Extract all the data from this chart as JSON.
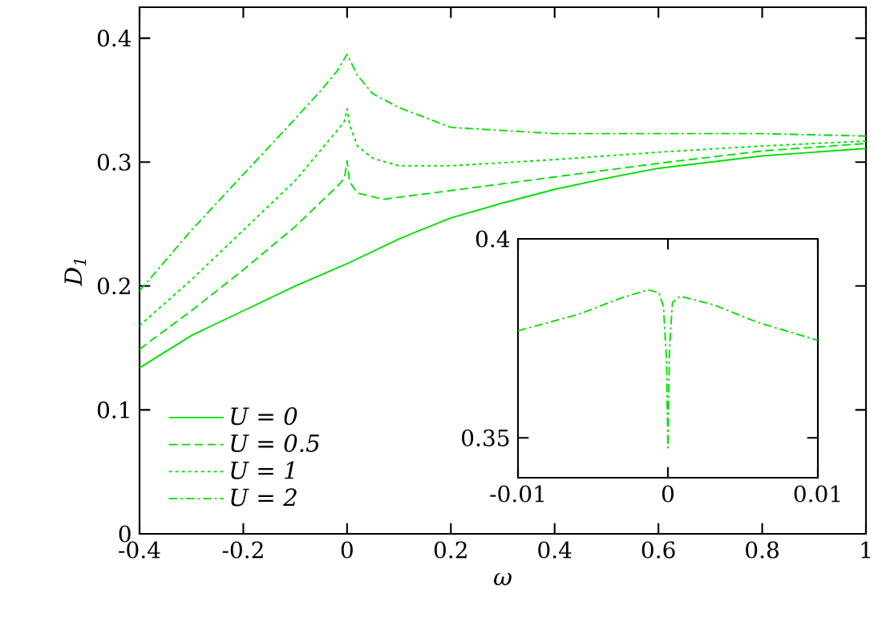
{
  "chart_data": [
    {
      "type": "line",
      "xlabel": "ω",
      "ylabel": "D$_{1}$",
      "legend": "bottom left",
      "xlim": [
        -0.4,
        1
      ],
      "ylim": [
        0,
        0.425
      ],
      "xticks": [
        -0.4,
        -0.2,
        0,
        0.2,
        0.4,
        0.6,
        0.8,
        1
      ],
      "yticks": [
        0,
        0.1,
        0.2,
        0.3,
        0.4
      ],
      "series": [
        {
          "name": "U = 0",
          "color": "#00e000",
          "line_style": "solid",
          "x": [
            -0.4,
            -0.3,
            -0.2,
            -0.1,
            0,
            0.1,
            0.2,
            0.3,
            0.4,
            0.5,
            0.6,
            0.7,
            0.8,
            0.9,
            1
          ],
          "values": [
            0.134,
            0.16,
            0.18,
            0.2,
            0.218,
            0.238,
            0.255,
            0.267,
            0.278,
            0.287,
            0.295,
            0.3,
            0.305,
            0.308,
            0.311
          ]
        },
        {
          "name": "U = 0.5",
          "color": "#00e000",
          "line_style": "dashed",
          "x": [
            -0.4,
            -0.3,
            -0.2,
            -0.1,
            -0.05,
            -0.02,
            -0.005,
            0,
            0.005,
            0.02,
            0.07,
            0.2,
            0.4,
            0.6,
            0.8,
            1
          ],
          "values": [
            0.149,
            0.18,
            0.213,
            0.248,
            0.268,
            0.28,
            0.287,
            0.301,
            0.284,
            0.275,
            0.27,
            0.277,
            0.288,
            0.299,
            0.309,
            0.315
          ]
        },
        {
          "name": "U = 1",
          "color": "#00e000",
          "line_style": "dotted",
          "x": [
            -0.4,
            -0.3,
            -0.2,
            -0.1,
            -0.05,
            -0.02,
            -0.005,
            0,
            0.005,
            0.02,
            0.05,
            0.1,
            0.2,
            0.4,
            0.6,
            0.8,
            1
          ],
          "values": [
            0.168,
            0.205,
            0.245,
            0.285,
            0.31,
            0.325,
            0.333,
            0.343,
            0.33,
            0.313,
            0.303,
            0.297,
            0.297,
            0.302,
            0.308,
            0.313,
            0.317
          ]
        },
        {
          "name": "U = 2",
          "color": "#00e000",
          "line_style": "dashdot",
          "x": [
            -0.4,
            -0.3,
            -0.2,
            -0.1,
            -0.05,
            -0.02,
            0,
            0.02,
            0.05,
            0.1,
            0.2,
            0.4,
            0.6,
            0.8,
            1
          ],
          "values": [
            0.196,
            0.245,
            0.29,
            0.335,
            0.358,
            0.373,
            0.387,
            0.37,
            0.355,
            0.344,
            0.328,
            0.323,
            0.323,
            0.323,
            0.321
          ]
        }
      ]
    },
    {
      "type": "line",
      "xlim": [
        -0.01,
        0.01
      ],
      "ylim": [
        0.34,
        0.4
      ],
      "xticks": [
        -0.01,
        0,
        0.01
      ],
      "yticks": [
        0.35,
        0.4
      ],
      "series": [
        {
          "color": "#00e000",
          "line_style": "dashdot",
          "x": [
            -0.01,
            -0.006,
            -0.003,
            -0.0013,
            -0.0006,
            -0.0003,
            -0.0001,
            0,
            0.0001,
            0.0003,
            0.0008,
            0.003,
            0.006,
            0.01
          ],
          "values": [
            0.3769,
            0.381,
            0.3853,
            0.3872,
            0.3865,
            0.383,
            0.37,
            0.3475,
            0.372,
            0.384,
            0.3856,
            0.3835,
            0.379,
            0.3745
          ]
        }
      ]
    }
  ]
}
